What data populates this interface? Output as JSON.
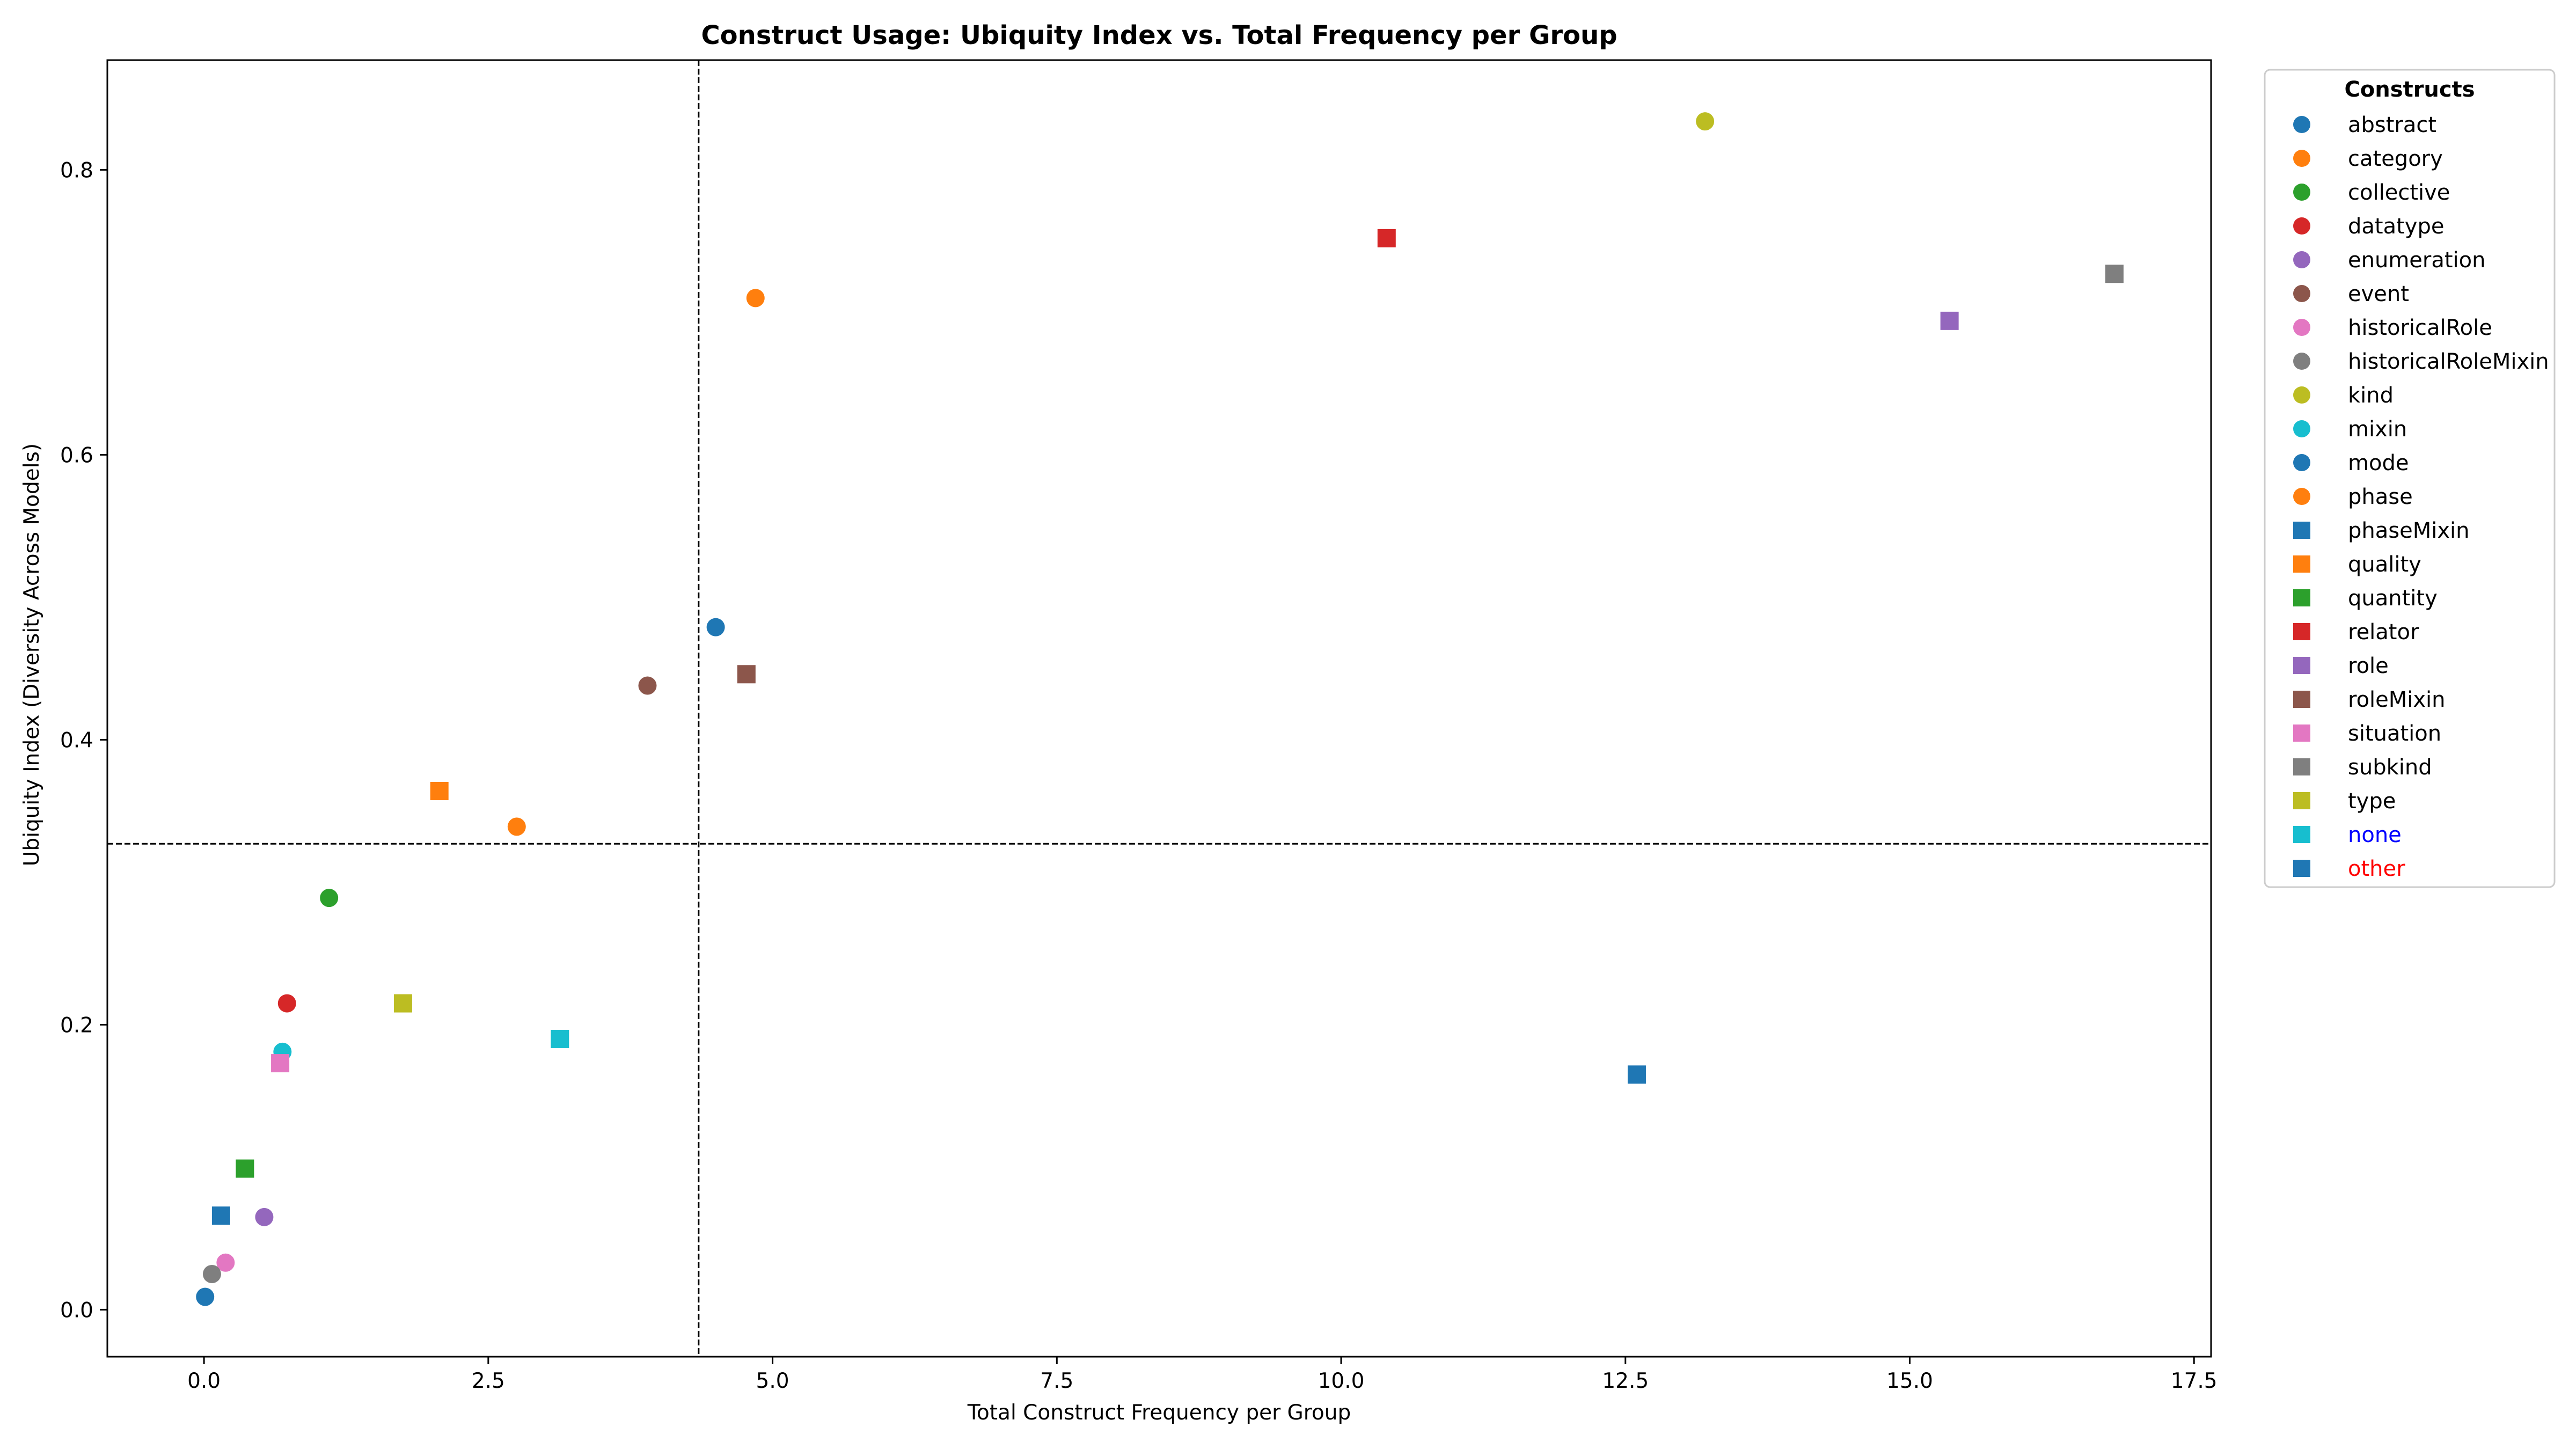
{
  "chart_data": {
    "type": "scatter",
    "title": "Construct Usage: Ubiquity Index vs. Total Frequency per Group",
    "xlabel": "Total Construct Frequency per Group",
    "ylabel": "Ubiquity Index (Diversity Across Models)",
    "xlim": [
      -0.85,
      17.65
    ],
    "ylim": [
      -0.033,
      0.877
    ],
    "xticks": [
      0.0,
      2.5,
      5.0,
      7.5,
      10.0,
      12.5,
      15.0,
      17.5
    ],
    "xtick_labels": [
      "0.0",
      "2.5",
      "5.0",
      "7.5",
      "10.0",
      "12.5",
      "15.0",
      "17.5"
    ],
    "yticks": [
      0.0,
      0.2,
      0.4,
      0.6,
      0.8
    ],
    "ytick_labels": [
      "0.0",
      "0.2",
      "0.4",
      "0.6",
      "0.8"
    ],
    "reference_lines": {
      "vertical_x": 4.35,
      "horizontal_y": 0.327,
      "style": "dashed"
    },
    "grid": false,
    "legend": {
      "title": "Constructs",
      "placement": "outside-right-top"
    },
    "series": [
      {
        "name": "abstract",
        "marker": "circle",
        "color": "#1f77b4",
        "label_color": "#000000",
        "x": 4.5,
        "y": 0.479
      },
      {
        "name": "category",
        "marker": "circle",
        "color": "#ff7f0e",
        "label_color": "#000000",
        "x": 2.75,
        "y": 0.339
      },
      {
        "name": "collective",
        "marker": "circle",
        "color": "#2ca02c",
        "label_color": "#000000",
        "x": 1.1,
        "y": 0.289
      },
      {
        "name": "datatype",
        "marker": "circle",
        "color": "#d62728",
        "label_color": "#000000",
        "x": 0.73,
        "y": 0.215
      },
      {
        "name": "enumeration",
        "marker": "circle",
        "color": "#9467bd",
        "label_color": "#000000",
        "x": 0.53,
        "y": 0.065
      },
      {
        "name": "event",
        "marker": "circle",
        "color": "#8c564b",
        "label_color": "#000000",
        "x": 3.9,
        "y": 0.438
      },
      {
        "name": "historicalRole",
        "marker": "circle",
        "color": "#e377c2",
        "label_color": "#000000",
        "x": 0.19,
        "y": 0.033
      },
      {
        "name": "historicalRoleMixin",
        "marker": "circle",
        "color": "#7f7f7f",
        "label_color": "#000000",
        "x": 0.07,
        "y": 0.025
      },
      {
        "name": "kind",
        "marker": "circle",
        "color": "#bcbd22",
        "label_color": "#000000",
        "x": 13.2,
        "y": 0.834
      },
      {
        "name": "mixin",
        "marker": "circle",
        "color": "#17becf",
        "label_color": "#000000",
        "x": 0.69,
        "y": 0.181
      },
      {
        "name": "mode",
        "marker": "circle",
        "color": "#1f77b4",
        "label_color": "#000000",
        "x": 0.01,
        "y": 0.009
      },
      {
        "name": "phase",
        "marker": "circle",
        "color": "#ff7f0e",
        "label_color": "#000000",
        "x": 4.85,
        "y": 0.71
      },
      {
        "name": "phaseMixin",
        "marker": "square",
        "color": "#1f77b4",
        "label_color": "#000000",
        "x": 0.15,
        "y": 0.066
      },
      {
        "name": "quality",
        "marker": "square",
        "color": "#ff7f0e",
        "label_color": "#000000",
        "x": 2.07,
        "y": 0.364
      },
      {
        "name": "quantity",
        "marker": "square",
        "color": "#2ca02c",
        "label_color": "#000000",
        "x": 0.36,
        "y": 0.099
      },
      {
        "name": "relator",
        "marker": "square",
        "color": "#d62728",
        "label_color": "#000000",
        "x": 10.4,
        "y": 0.752
      },
      {
        "name": "role",
        "marker": "square",
        "color": "#9467bd",
        "label_color": "#000000",
        "x": 15.35,
        "y": 0.694
      },
      {
        "name": "roleMixin",
        "marker": "square",
        "color": "#8c564b",
        "label_color": "#000000",
        "x": 4.77,
        "y": 0.446
      },
      {
        "name": "situation",
        "marker": "square",
        "color": "#e377c2",
        "label_color": "#000000",
        "x": 0.67,
        "y": 0.173
      },
      {
        "name": "subkind",
        "marker": "square",
        "color": "#7f7f7f",
        "label_color": "#000000",
        "x": 16.8,
        "y": 0.727
      },
      {
        "name": "type",
        "marker": "square",
        "color": "#bcbd22",
        "label_color": "#000000",
        "x": 1.75,
        "y": 0.215
      },
      {
        "name": "none",
        "marker": "square",
        "color": "#17becf",
        "label_color": "#0000ff",
        "x": 3.13,
        "y": 0.19
      },
      {
        "name": "other",
        "marker": "square",
        "color": "#1f77b4",
        "label_color": "#ff0000",
        "x": 12.6,
        "y": 0.165
      }
    ]
  }
}
